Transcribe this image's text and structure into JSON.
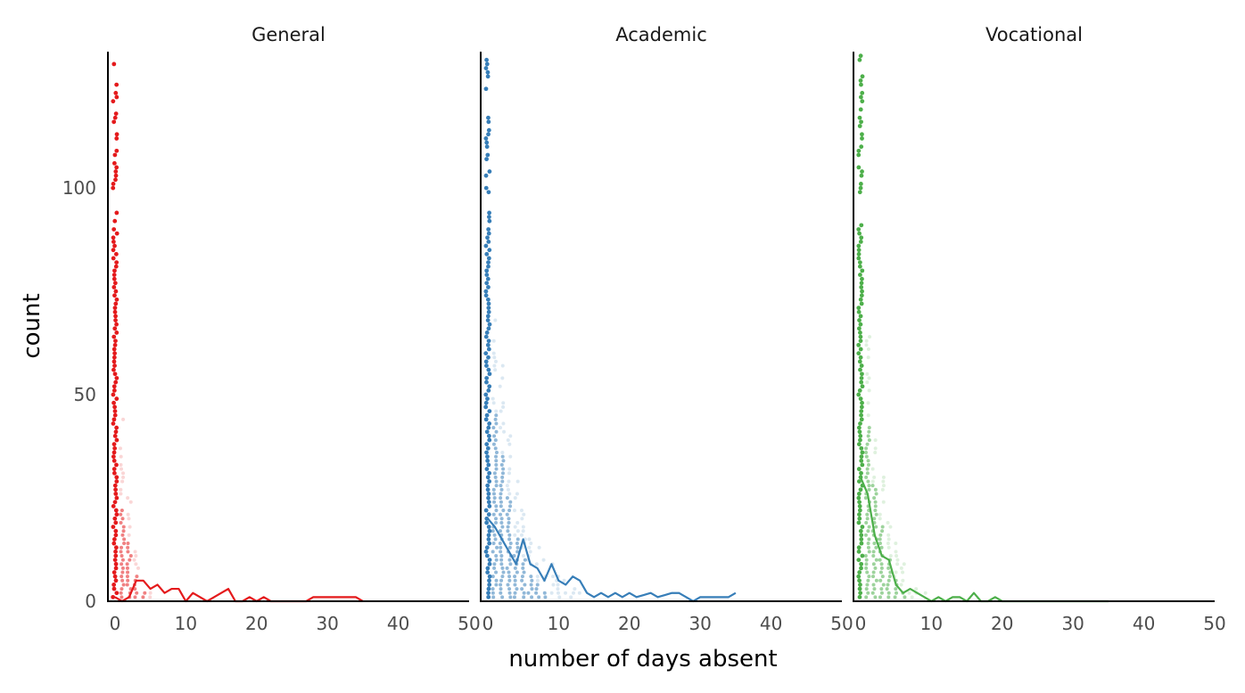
{
  "chart_data": {
    "type": "scatter",
    "xlabel": "number of days absent",
    "ylabel": "count",
    "xlim": [
      -1,
      50
    ],
    "ylim": [
      0,
      133
    ],
    "x_ticks": [
      0,
      10,
      20,
      30,
      40,
      50
    ],
    "y_ticks": [
      0,
      50,
      100
    ],
    "grid": false,
    "legend": "none",
    "facets": [
      {
        "label": "General",
        "color": "#e41a1c",
        "line": {
          "x": [
            0,
            1,
            2,
            3,
            4,
            5,
            6,
            7,
            8,
            9,
            10,
            11,
            12,
            13,
            14,
            15,
            16,
            17,
            18,
            19,
            20,
            21,
            22,
            23,
            24,
            25,
            26,
            27,
            28,
            29,
            30,
            31,
            32,
            33,
            34,
            35
          ],
          "y": [
            1,
            0,
            1,
            5,
            5,
            3,
            4,
            2,
            3,
            3,
            0,
            2,
            1,
            0,
            1,
            2,
            3,
            0,
            0,
            1,
            0,
            1,
            0,
            0,
            0,
            0,
            0,
            0,
            1,
            1,
            1,
            1,
            1,
            1,
            1,
            0
          ]
        },
        "points": {
          "columns": [
            {
              "x": 0,
              "max": 132,
              "dense_to": 90
            },
            {
              "x": 1,
              "max": 44,
              "dense_to": 22
            },
            {
              "x": 2,
              "max": 25,
              "dense_to": 14
            },
            {
              "x": 3,
              "max": 15,
              "dense_to": 6
            },
            {
              "x": 4,
              "max": 6,
              "dense_to": 2
            },
            {
              "x": 5,
              "max": 4,
              "dense_to": 0
            }
          ]
        }
      },
      {
        "label": "Academic",
        "color": "#377eb8",
        "line": {
          "x": [
            0,
            1,
            2,
            3,
            4,
            5,
            6,
            7,
            8,
            9,
            10,
            11,
            12,
            13,
            14,
            15,
            16,
            17,
            18,
            19,
            20,
            21,
            22,
            23,
            24,
            25,
            26,
            27,
            28,
            29,
            30,
            31,
            32,
            33,
            34,
            35
          ],
          "y": [
            20,
            18,
            15,
            12,
            9,
            15,
            9,
            8,
            5,
            9,
            5,
            4,
            6,
            5,
            2,
            1,
            2,
            1,
            2,
            1,
            2,
            1,
            1.5,
            2,
            1,
            1.5,
            2,
            2,
            1,
            0,
            1,
            1,
            1,
            1,
            1,
            2
          ]
        },
        "points": {
          "columns": [
            {
              "x": 0,
              "max": 132,
              "dense_to": 90
            },
            {
              "x": 1,
              "max": 70,
              "dense_to": 45
            },
            {
              "x": 2,
              "max": 58,
              "dense_to": 35
            },
            {
              "x": 3,
              "max": 40,
              "dense_to": 25
            },
            {
              "x": 4,
              "max": 30,
              "dense_to": 15
            },
            {
              "x": 5,
              "max": 22,
              "dense_to": 10
            },
            {
              "x": 6,
              "max": 18,
              "dense_to": 6
            },
            {
              "x": 7,
              "max": 14,
              "dense_to": 4
            },
            {
              "x": 8,
              "max": 11,
              "dense_to": 2
            },
            {
              "x": 9,
              "max": 9,
              "dense_to": 0
            },
            {
              "x": 10,
              "max": 7,
              "dense_to": 0
            },
            {
              "x": 11,
              "max": 5,
              "dense_to": 0
            },
            {
              "x": 12,
              "max": 4,
              "dense_to": 0
            },
            {
              "x": 13,
              "max": 3,
              "dense_to": 0
            }
          ]
        }
      },
      {
        "label": "Vocational",
        "color": "#4daf4a",
        "line": {
          "x": [
            0,
            1,
            2,
            3,
            4,
            5,
            6,
            7,
            8,
            9,
            10,
            11,
            12,
            13,
            14,
            15,
            16,
            17,
            18,
            19,
            20,
            21,
            22,
            23,
            24,
            25,
            26,
            27,
            28,
            29,
            30,
            31,
            32,
            33,
            34,
            35
          ],
          "y": [
            30,
            26,
            16,
            11,
            10,
            4,
            2,
            3,
            2,
            1,
            0,
            1,
            0,
            1,
            1,
            0,
            2,
            0,
            0,
            1,
            0,
            0,
            0,
            0,
            0,
            0,
            0,
            0,
            0,
            0,
            0,
            0,
            0,
            0,
            0,
            0
          ]
        },
        "points": {
          "columns": [
            {
              "x": 0,
              "max": 132,
              "dense_to": 90
            },
            {
              "x": 1,
              "max": 65,
              "dense_to": 42
            },
            {
              "x": 2,
              "max": 45,
              "dense_to": 28
            },
            {
              "x": 3,
              "max": 30,
              "dense_to": 18
            },
            {
              "x": 4,
              "max": 20,
              "dense_to": 10
            },
            {
              "x": 5,
              "max": 14,
              "dense_to": 5
            },
            {
              "x": 6,
              "max": 9,
              "dense_to": 2
            },
            {
              "x": 7,
              "max": 6,
              "dense_to": 0
            },
            {
              "x": 8,
              "max": 4,
              "dense_to": 0
            },
            {
              "x": 9,
              "max": 3,
              "dense_to": 0
            }
          ]
        }
      }
    ]
  }
}
